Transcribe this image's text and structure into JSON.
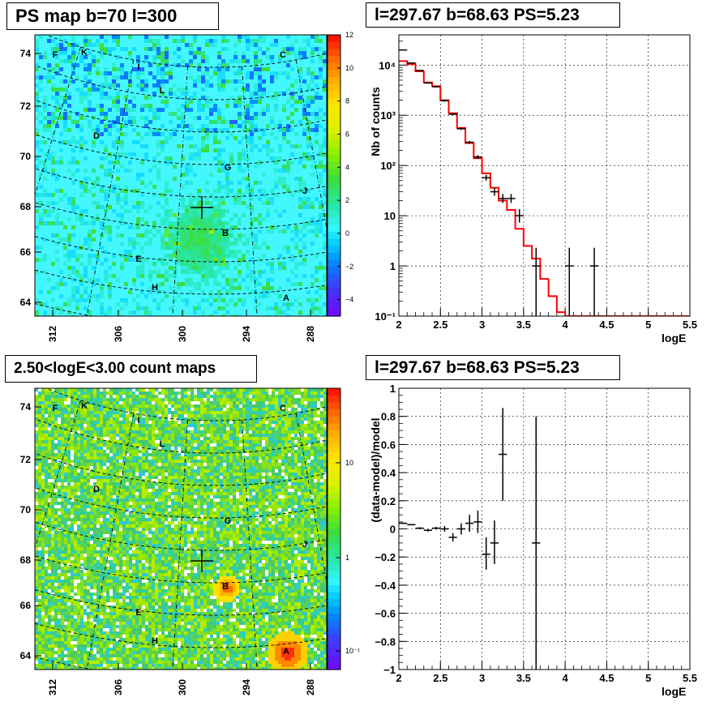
{
  "panels": {
    "tl_title": "PS map b=70 l=300",
    "tr_title": "l=297.67 b=68.63 PS=5.23",
    "bl_title": "2.50<logE<3.00 count maps",
    "br_title": "l=297.67 b=68.63 PS=5.23"
  },
  "colors": {
    "map_bg_top": "#22e8f0",
    "map_bg_bottom": "#44f7ff",
    "model_line": "#ff0000",
    "grid": "#000000"
  },
  "chart_data": [
    {
      "type": "heatmap",
      "id": "ps-map",
      "x_ticks": [
        "312",
        "306",
        "300",
        "294",
        "288"
      ],
      "y_ticks": [
        "74",
        "72",
        "70",
        "68",
        "66",
        "64"
      ],
      "colorbar_ticks": [
        "12",
        "10",
        "8",
        "6",
        "4",
        "2",
        "0",
        "−2",
        "−4"
      ],
      "colorbar_range": [
        -5,
        12
      ],
      "colorbar_scale": "linear",
      "source_labels": [
        "F",
        "K",
        "I",
        "C",
        "L",
        "D",
        "G",
        "J",
        "B",
        "E",
        "H",
        "A"
      ]
    },
    {
      "type": "line",
      "id": "spectrum",
      "xlabel": "logE",
      "ylabel": "Nb of counts",
      "xlim": [
        2,
        5.5
      ],
      "ylim": [
        0.1,
        40000
      ],
      "yscale": "log",
      "x_ticks": [
        "2",
        "2.5",
        "3",
        "3.5",
        "4",
        "4.5",
        "5",
        "5.5"
      ],
      "y_ticks": [
        "10⁴",
        "10³",
        "10²",
        "10",
        "1",
        "10⁻¹"
      ],
      "grid": true,
      "model_bin_edges": [
        2.0,
        2.1,
        2.2,
        2.3,
        2.4,
        2.5,
        2.6,
        2.7,
        2.8,
        2.9,
        3.0,
        3.1,
        3.2,
        3.3,
        3.4,
        3.5,
        3.6,
        3.7,
        3.8,
        3.9,
        4.0,
        5.5
      ],
      "model_values": [
        12000,
        10500,
        7500,
        4500,
        3800,
        2000,
        1100,
        560,
        280,
        140,
        70,
        36,
        20,
        13,
        5.5,
        2.5,
        1.4,
        0.55,
        0.25,
        0.12,
        0.1
      ],
      "data_points": [
        {
          "x": 2.05,
          "y": 20000,
          "ylo": 19500,
          "yhi": 20500
        },
        {
          "x": 2.15,
          "y": 11000,
          "ylo": 10700,
          "yhi": 11300
        },
        {
          "x": 2.25,
          "y": 7800,
          "ylo": 7600,
          "yhi": 8000
        },
        {
          "x": 2.35,
          "y": 4400,
          "ylo": 4250,
          "yhi": 4550
        },
        {
          "x": 2.45,
          "y": 3700,
          "ylo": 3580,
          "yhi": 3820
        },
        {
          "x": 2.55,
          "y": 1950,
          "ylo": 1870,
          "yhi": 2030
        },
        {
          "x": 2.65,
          "y": 1050,
          "ylo": 1000,
          "yhi": 1100
        },
        {
          "x": 2.75,
          "y": 540,
          "ylo": 510,
          "yhi": 570
        },
        {
          "x": 2.85,
          "y": 290,
          "ylo": 270,
          "yhi": 310
        },
        {
          "x": 2.95,
          "y": 148,
          "ylo": 135,
          "yhi": 161
        },
        {
          "x": 3.05,
          "y": 57,
          "ylo": 50,
          "yhi": 65
        },
        {
          "x": 3.15,
          "y": 30,
          "ylo": 25,
          "yhi": 36
        },
        {
          "x": 3.25,
          "y": 22,
          "ylo": 18,
          "yhi": 27
        },
        {
          "x": 3.35,
          "y": 22,
          "ylo": 18,
          "yhi": 27
        },
        {
          "x": 3.45,
          "y": 10,
          "ylo": 7.3,
          "yhi": 13.5
        },
        {
          "x": 3.65,
          "y": 1,
          "ylo": 0.1,
          "yhi": 2.3
        },
        {
          "x": 4.05,
          "y": 1,
          "ylo": 0.1,
          "yhi": 2.3
        },
        {
          "x": 4.35,
          "y": 1,
          "ylo": 0.1,
          "yhi": 2.3
        }
      ]
    },
    {
      "type": "heatmap",
      "id": "count-map",
      "x_ticks": [
        "312",
        "306",
        "300",
        "294",
        "288"
      ],
      "y_ticks": [
        "74",
        "72",
        "70",
        "68",
        "66",
        "64"
      ],
      "colorbar_ticks": [
        "10",
        "1",
        "10⁻¹"
      ],
      "colorbar_scale": "log",
      "source_labels": [
        "F",
        "K",
        "I",
        "C",
        "L",
        "D",
        "G",
        "J",
        "B",
        "E",
        "H",
        "A"
      ]
    },
    {
      "type": "scatter",
      "id": "residuals",
      "xlabel": "logE",
      "ylabel": "(data-model)/model",
      "xlim": [
        2,
        5.5
      ],
      "ylim": [
        -1,
        1
      ],
      "x_ticks": [
        "2",
        "2.5",
        "3",
        "3.5",
        "4",
        "4.5",
        "5",
        "5.5"
      ],
      "y_ticks": [
        "1",
        "0.8",
        "0.6",
        "0.4",
        "0.2",
        "0",
        "−0.2",
        "−0.4",
        "−0.6",
        "−0.8",
        "−1"
      ],
      "grid": true,
      "points": [
        {
          "x": 2.05,
          "y": 0.04,
          "ylo": 0.035,
          "yhi": 0.045
        },
        {
          "x": 2.15,
          "y": 0.03,
          "ylo": 0.025,
          "yhi": 0.035
        },
        {
          "x": 2.25,
          "y": 0.005,
          "ylo": -0.002,
          "yhi": 0.012
        },
        {
          "x": 2.35,
          "y": -0.01,
          "ylo": -0.02,
          "yhi": 0.0
        },
        {
          "x": 2.45,
          "y": 0.005,
          "ylo": -0.005,
          "yhi": 0.015
        },
        {
          "x": 2.55,
          "y": 0.0,
          "ylo": -0.02,
          "yhi": 0.02
        },
        {
          "x": 2.65,
          "y": -0.06,
          "ylo": -0.09,
          "yhi": -0.03
        },
        {
          "x": 2.75,
          "y": 0.0,
          "ylo": -0.04,
          "yhi": 0.04
        },
        {
          "x": 2.85,
          "y": 0.04,
          "ylo": -0.02,
          "yhi": 0.1
        },
        {
          "x": 2.95,
          "y": 0.05,
          "ylo": -0.03,
          "yhi": 0.13
        },
        {
          "x": 3.05,
          "y": -0.18,
          "ylo": -0.29,
          "yhi": -0.06
        },
        {
          "x": 3.15,
          "y": -0.1,
          "ylo": -0.25,
          "yhi": 0.06
        },
        {
          "x": 3.25,
          "y": 0.53,
          "ylo": 0.2,
          "yhi": 0.86
        },
        {
          "x": 3.65,
          "y": -0.1,
          "ylo": -1.0,
          "yhi": 0.8
        }
      ]
    }
  ]
}
